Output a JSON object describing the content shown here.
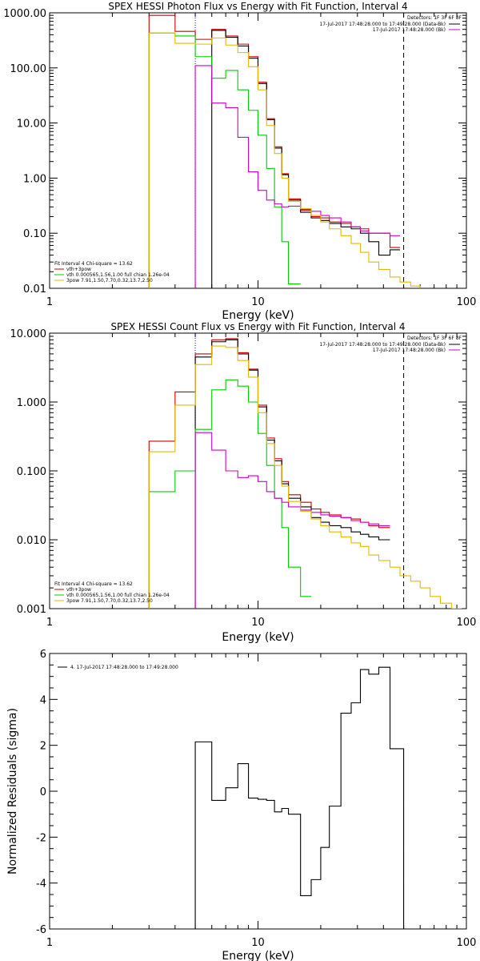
{
  "chart_data": [
    {
      "type": "line",
      "title": "SPEX HESSI Photon Flux vs Energy with Fit Function, Interval 4",
      "xlabel": "Energy (keV)",
      "ylabel": "",
      "xscale": "log",
      "yscale": "log",
      "xlim": [
        1,
        100
      ],
      "ylim": [
        0.01,
        1000
      ],
      "xticks": [
        "1",
        "10",
        "100"
      ],
      "yticks": [
        "0.01",
        "0.10",
        "1.00",
        "10.00",
        "100.00",
        "1000.00"
      ],
      "ytick_values": [
        0.01,
        0.1,
        1,
        10,
        100,
        1000
      ],
      "vlines": [
        {
          "x": 5.0,
          "style": "dotted",
          "color": "#0000cc"
        },
        {
          "x": 50,
          "style": "dashed",
          "color": "#000000"
        }
      ],
      "edges": [
        3,
        4,
        5,
        6,
        7,
        8,
        9,
        10,
        11,
        12,
        13,
        14,
        16,
        18,
        20,
        22,
        25,
        28,
        31,
        34,
        38,
        43,
        48,
        54,
        60,
        67,
        75
      ],
      "series": [
        {
          "color": "#cc0000",
          "values": [
            900,
            460,
            330,
            500,
            380,
            270,
            160,
            55,
            12,
            3.7,
            1.2,
            0.42,
            0.26,
            0.2,
            0.19,
            0.16,
            0.15,
            0.13,
            0.12,
            0.1,
            0.1,
            0.055,
            null,
            null,
            null,
            null
          ]
        },
        {
          "color": "#000000",
          "values": [
            null,
            null,
            null,
            480,
            360,
            250,
            150,
            52,
            11.5,
            3.5,
            1.15,
            0.4,
            0.24,
            0.19,
            0.17,
            0.15,
            0.13,
            0.12,
            0.1,
            0.07,
            0.04,
            0.05,
            null,
            null,
            null,
            null
          ]
        },
        {
          "color": "#00cc00",
          "values": [
            430,
            380,
            160,
            65,
            90,
            40,
            17,
            6,
            1.5,
            0.3,
            0.07,
            0.012,
            null,
            null,
            null,
            null,
            null,
            null,
            null,
            null,
            null,
            null,
            null,
            null,
            null,
            null
          ]
        },
        {
          "color": "#cc00cc",
          "values": [
            null,
            null,
            110,
            23,
            19,
            5.5,
            1.3,
            0.6,
            0.4,
            0.34,
            0.3,
            0.31,
            0.27,
            0.25,
            0.21,
            0.19,
            0.16,
            0.13,
            0.11,
            0.1,
            0.1,
            0.09,
            null,
            null,
            null,
            null
          ]
        },
        {
          "color": "#e6b800",
          "values": [
            430,
            280,
            270,
            350,
            260,
            190,
            105,
            40,
            9,
            2.8,
            1,
            0.38,
            0.28,
            0.21,
            0.16,
            0.12,
            0.09,
            0.065,
            0.045,
            0.03,
            0.022,
            0.016,
            0.013,
            0.011,
            0.009,
            null
          ]
        }
      ],
      "annotations": {
        "detectors": "Detectors: 1F 3F 6F 8F",
        "legend_lines": [
          "17-Jul-2017 17:48:28.000 to 17:49:28.000 (Data-Bk)",
          "17-Jul-2017 17:48:28.000 (Bk)"
        ],
        "fit_title": "Fit Interval  4    Chi-square = 13.62",
        "fit_lines": [
          "vth+3pow",
          "vth 0.000565,1.56,1.00  full chian 1.26e-04",
          "3pow 7.91,1.50,7.70,0.32,13.7,2.50"
        ]
      }
    },
    {
      "type": "line",
      "title": "SPEX HESSI Count Flux vs Energy with Fit Function, Interval 4",
      "xlabel": "Energy (keV)",
      "ylabel": "",
      "xscale": "log",
      "yscale": "log",
      "xlim": [
        1,
        100
      ],
      "ylim": [
        0.001,
        10
      ],
      "xticks": [
        "1",
        "10",
        "100"
      ],
      "yticks": [
        "0.001",
        "0.010",
        "0.100",
        "1.000",
        "10.000"
      ],
      "ytick_values": [
        0.001,
        0.01,
        0.1,
        1,
        10
      ],
      "vlines": [
        {
          "x": 5.0,
          "style": "dotted",
          "color": "#0000cc"
        },
        {
          "x": 50,
          "style": "dashed",
          "color": "#000000"
        }
      ],
      "edges": [
        3,
        4,
        5,
        6,
        7,
        8,
        9,
        10,
        11,
        12,
        13,
        14,
        16,
        18,
        20,
        22,
        25,
        28,
        31,
        34,
        38,
        43,
        48,
        54,
        60,
        67,
        75,
        85,
        95
      ],
      "series": [
        {
          "color": "#cc0000",
          "values": [
            0.27,
            1.4,
            5.0,
            8.0,
            8.3,
            5.2,
            3.0,
            0.9,
            0.3,
            0.15,
            0.07,
            0.045,
            0.035,
            0.028,
            0.025,
            0.023,
            0.021,
            0.02,
            0.018,
            0.016,
            0.015,
            null,
            null,
            null,
            null,
            null,
            null,
            null
          ]
        },
        {
          "color": "#000000",
          "values": [
            null,
            null,
            4.5,
            7.5,
            8.0,
            5.0,
            2.9,
            0.85,
            0.28,
            0.14,
            0.065,
            0.04,
            0.03,
            0.021,
            0.018,
            0.016,
            0.015,
            0.013,
            0.012,
            0.011,
            0.01,
            null,
            null,
            null,
            null,
            null,
            null,
            null
          ]
        },
        {
          "color": "#00cc00",
          "values": [
            0.05,
            0.1,
            0.4,
            1.5,
            2.1,
            1.7,
            1.0,
            0.35,
            0.12,
            0.04,
            0.015,
            0.004,
            0.0015,
            null,
            null,
            null,
            null,
            null,
            null,
            null,
            null,
            null,
            null,
            null,
            null,
            null,
            null,
            null
          ]
        },
        {
          "color": "#cc00cc",
          "values": [
            null,
            null,
            0.36,
            0.2,
            0.1,
            0.08,
            0.085,
            0.07,
            0.05,
            0.04,
            0.035,
            0.03,
            0.027,
            0.025,
            0.023,
            0.022,
            0.021,
            0.019,
            0.018,
            0.017,
            0.016,
            null,
            null,
            null,
            null,
            null,
            null,
            null
          ]
        },
        {
          "color": "#e6b800",
          "values": [
            0.19,
            0.9,
            3.5,
            6.5,
            6.2,
            4.0,
            2.3,
            0.7,
            0.25,
            0.12,
            0.06,
            0.036,
            0.026,
            0.02,
            0.016,
            0.013,
            0.011,
            0.009,
            0.008,
            0.006,
            0.005,
            0.004,
            0.003,
            0.0025,
            0.002,
            0.0015,
            0.0012,
            0.001
          ]
        }
      ],
      "annotations": {
        "detectors": "Detectors: 1F 3F 6F 8F",
        "legend_lines": [
          "17-Jul-2017 17:48:28.000 to 17:49:28.000 (Data-Bk)",
          "17-Jul-2017 17:48:28.000 (Bk)"
        ],
        "fit_title": "Fit Interval  4    Chi-square = 13.62",
        "fit_lines": [
          "vth+3pow",
          "vth 0.000565,1.56,1.00  full chian 1.26e-04",
          "3pow 7.91,1.50,7.70,0.32,13.7,2.50"
        ]
      }
    },
    {
      "type": "line",
      "title": "",
      "xlabel": "Energy (keV)",
      "ylabel": "Normalized Residuals (sigma)",
      "xscale": "log",
      "yscale": "linear",
      "xlim": [
        1,
        100
      ],
      "ylim": [
        -6,
        6
      ],
      "xticks": [
        "1",
        "10",
        "100"
      ],
      "yticks": [
        "-6",
        "-4",
        "-2",
        "0",
        "2",
        "4",
        "6"
      ],
      "ytick_values": [
        -6,
        -4,
        -2,
        0,
        2,
        4,
        6
      ],
      "edges": [
        5,
        6,
        7,
        8,
        9,
        10,
        11,
        12,
        13,
        14,
        16,
        18,
        20,
        22,
        25,
        28,
        31,
        34,
        38,
        43,
        48,
        50
      ],
      "series": [
        {
          "color": "#000000",
          "values": [
            2.15,
            -0.4,
            0.15,
            1.2,
            -0.3,
            -0.35,
            -0.4,
            -0.9,
            -0.75,
            -1.0,
            -4.55,
            -3.85,
            -2.45,
            -0.65,
            3.4,
            3.85,
            5.3,
            5.1,
            5.4,
            1.85,
            1.85
          ]
        }
      ],
      "annotations": {
        "legend_line": "4. 17-Jul-2017 17:48:28.000 to 17:49:28.000"
      }
    }
  ]
}
